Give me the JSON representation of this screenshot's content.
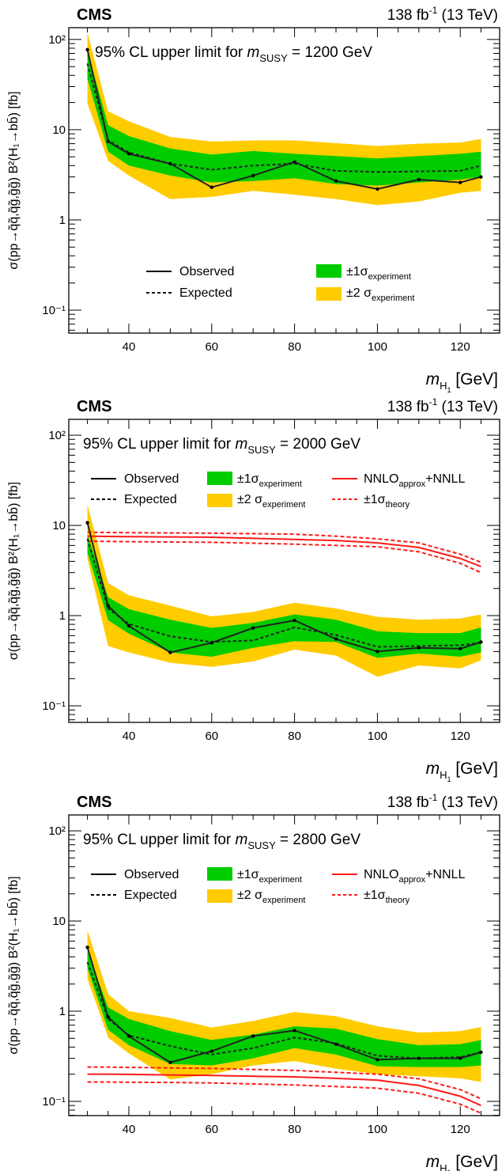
{
  "header": {
    "experiment": "CMS",
    "lumi": "138 fb",
    "lumi_sup": "-1",
    "energy": " (13 TeV)"
  },
  "axes": {
    "xlabel_var": "m",
    "xlabel_sub": "H",
    "xlabel_subsub": "1",
    "xlabel_unit": " [GeV]",
    "ylabel": "σ(pp→q̃q̃,q̃g̃,g̃g̃) B²(H₁→bb̄) [fb]",
    "xticks": [
      "40",
      "60",
      "80",
      "100",
      "120"
    ],
    "yticks": [
      "10⁻¹",
      "1",
      "10",
      "10²"
    ]
  },
  "legend": {
    "observed": "Observed",
    "expected": "Expected",
    "one_sigma": "±1σ",
    "two_sigma": "±2 σ",
    "exp_sub": "experiment",
    "theory": "NNLO",
    "theory_sub": "approx",
    "theory_suffix": "+NNLL",
    "theory_sigma": "±1σ",
    "theory_sigma_sub": "theory"
  },
  "colors": {
    "one_sigma": "#00cc00",
    "two_sigma": "#ffcc00",
    "theory": "#ff1a1a",
    "line": "#000000"
  },
  "chart_data": [
    {
      "type": "line",
      "title_prefix": "95% CL upper limit for ",
      "title_var": "m",
      "title_sub": "SUSY",
      "title_suffix": " = 1200 GeV",
      "xlim": [
        25.5,
        129.5
      ],
      "ylim": [
        0.0557,
        135
      ],
      "yscale": "log",
      "x": [
        30,
        35,
        40,
        50,
        60,
        70,
        80,
        90,
        100,
        110,
        120,
        125
      ],
      "observed": [
        77,
        7.4,
        5.4,
        4.2,
        2.3,
        3.1,
        4.4,
        2.7,
        2.2,
        2.8,
        2.6,
        3.0
      ],
      "expected": [
        54,
        7.6,
        5.6,
        4.2,
        3.6,
        4.0,
        4.2,
        3.5,
        3.4,
        3.45,
        3.5,
        4.0
      ],
      "one_sigma_up": [
        75,
        11.2,
        8.5,
        6.2,
        5.3,
        5.8,
        5.4,
        5.1,
        4.8,
        5.1,
        5.4,
        5.7
      ],
      "one_sigma_down": [
        37,
        5.7,
        4.0,
        3.1,
        2.6,
        2.7,
        2.9,
        2.5,
        2.4,
        2.6,
        2.8,
        3.0
      ],
      "two_sigma_up": [
        120,
        16,
        12.4,
        8.3,
        7.4,
        7.6,
        7.6,
        7.1,
        6.6,
        7.0,
        7.2,
        7.9
      ],
      "two_sigma_down": [
        19.6,
        4.5,
        3.1,
        1.7,
        1.8,
        2.1,
        1.9,
        1.7,
        1.46,
        1.6,
        2.0,
        2.1
      ],
      "theory": null
    },
    {
      "type": "line",
      "title_prefix": "95% CL upper limit for ",
      "title_var": "m",
      "title_sub": "SUSY",
      "title_suffix": " = 2000 GeV",
      "xlim": [
        25.5,
        129.5
      ],
      "ylim": [
        0.0655,
        150
      ],
      "yscale": "log",
      "x": [
        30,
        35,
        40,
        50,
        60,
        70,
        80,
        90,
        100,
        110,
        120,
        125
      ],
      "observed": [
        10.7,
        1.28,
        0.77,
        0.39,
        0.5,
        0.73,
        0.885,
        0.55,
        0.4,
        0.44,
        0.43,
        0.51
      ],
      "expected": [
        7.1,
        1.2,
        0.81,
        0.59,
        0.51,
        0.53,
        0.74,
        0.61,
        0.45,
        0.46,
        0.47,
        0.5
      ],
      "one_sigma_up": [
        8.0,
        1.6,
        1.18,
        0.9,
        0.73,
        0.83,
        1.03,
        0.9,
        0.67,
        0.64,
        0.64,
        0.74
      ],
      "one_sigma_down": [
        5.0,
        0.89,
        0.63,
        0.39,
        0.35,
        0.44,
        0.52,
        0.51,
        0.34,
        0.38,
        0.35,
        0.39
      ],
      "two_sigma_up": [
        17,
        2.3,
        1.68,
        1.29,
        0.98,
        1.1,
        1.39,
        1.2,
        0.97,
        0.9,
        0.93,
        1.03
      ],
      "two_sigma_down": [
        4.3,
        0.46,
        0.39,
        0.3,
        0.27,
        0.31,
        0.42,
        0.36,
        0.21,
        0.28,
        0.26,
        0.32
      ],
      "theory": {
        "central": [
          7.6,
          7.55,
          7.5,
          7.45,
          7.4,
          7.2,
          7.0,
          6.8,
          6.4,
          5.7,
          4.3,
          3.5
        ],
        "up": [
          8.4,
          8.35,
          8.3,
          8.25,
          8.2,
          8.1,
          8.0,
          7.6,
          7.1,
          6.4,
          4.8,
          3.9
        ],
        "down": [
          6.7,
          6.65,
          6.6,
          6.55,
          6.5,
          6.35,
          6.2,
          6.0,
          5.8,
          5.1,
          3.8,
          3.0
        ]
      }
    },
    {
      "type": "line",
      "title_prefix": "95% CL upper limit for ",
      "title_var": "m",
      "title_sub": "SUSY",
      "title_suffix": " = 2800 GeV",
      "xlim": [
        25.5,
        129.5
      ],
      "ylim": [
        0.0695,
        150
      ],
      "yscale": "log",
      "x": [
        30,
        35,
        40,
        50,
        60,
        70,
        80,
        90,
        100,
        110,
        120,
        125
      ],
      "observed": [
        5.1,
        0.86,
        0.53,
        0.27,
        0.36,
        0.53,
        0.61,
        0.43,
        0.29,
        0.3,
        0.3,
        0.35
      ],
      "expected": [
        3.5,
        0.82,
        0.54,
        0.41,
        0.33,
        0.39,
        0.51,
        0.44,
        0.32,
        0.3,
        0.31,
        0.35
      ],
      "one_sigma_up": [
        4.6,
        1.1,
        0.82,
        0.6,
        0.48,
        0.55,
        0.68,
        0.64,
        0.49,
        0.42,
        0.43,
        0.48
      ],
      "one_sigma_down": [
        3.0,
        0.62,
        0.42,
        0.26,
        0.25,
        0.3,
        0.39,
        0.33,
        0.245,
        0.24,
        0.24,
        0.25
      ],
      "two_sigma_up": [
        7.9,
        1.55,
        1.0,
        0.84,
        0.66,
        0.78,
        0.98,
        0.88,
        0.68,
        0.58,
        0.6,
        0.67
      ],
      "two_sigma_down": [
        2.3,
        0.51,
        0.34,
        0.175,
        0.2,
        0.25,
        0.28,
        0.23,
        0.2,
        0.19,
        0.18,
        0.164
      ],
      "theory": {
        "central": [
          0.2,
          0.2,
          0.199,
          0.196,
          0.194,
          0.19,
          0.187,
          0.18,
          0.172,
          0.15,
          0.114,
          0.09
        ],
        "up": [
          0.24,
          0.24,
          0.238,
          0.235,
          0.232,
          0.226,
          0.22,
          0.21,
          0.2,
          0.178,
          0.135,
          0.107
        ],
        "down": [
          0.164,
          0.164,
          0.163,
          0.162,
          0.16,
          0.156,
          0.152,
          0.146,
          0.14,
          0.123,
          0.093,
          0.074
        ]
      }
    }
  ]
}
